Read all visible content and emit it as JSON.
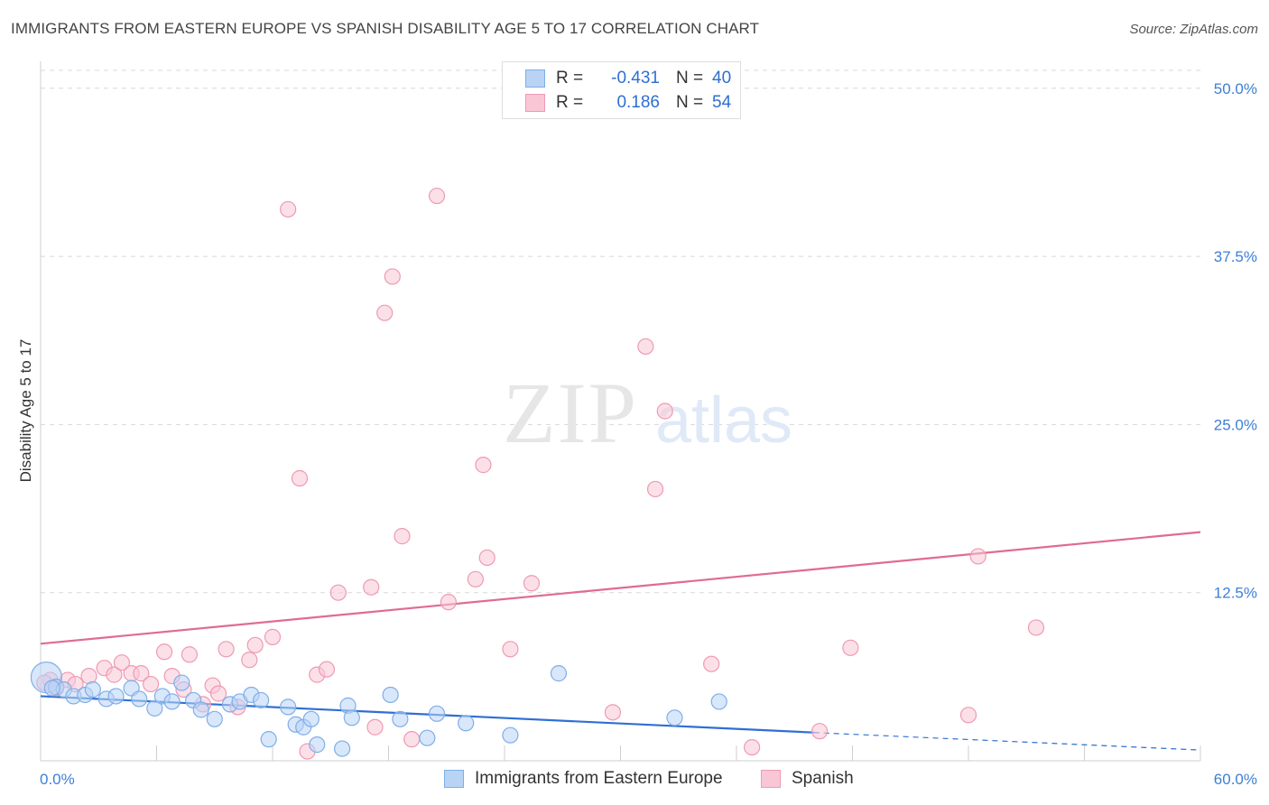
{
  "title": "IMMIGRANTS FROM EASTERN EUROPE VS SPANISH DISABILITY AGE 5 TO 17 CORRELATION CHART",
  "source": "Source: ZipAtlas.com",
  "watermark": {
    "zip": "ZIP",
    "atlas": "atlas"
  },
  "legend": {
    "r_label": "R =",
    "n_label": "N =",
    "series1": {
      "r": "-0.431",
      "n": "40"
    },
    "series2": {
      "r": "0.186",
      "n": "54"
    }
  },
  "colors": {
    "blue_fill": "#b9d3f5",
    "blue_stroke": "#7eaee8",
    "blue_line": "#2f6fd3",
    "pink_fill": "#f9c6d6",
    "pink_stroke": "#ee9ab4",
    "pink_line": "#e06b93",
    "tick": "#3d7fd6",
    "grid": "#d8d8d8"
  },
  "chart_data": {
    "type": "scatter",
    "title": "IMMIGRANTS FROM EASTERN EUROPE VS SPANISH DISABILITY AGE 5 TO 17 CORRELATION CHART",
    "xlabel": "",
    "ylabel": "Disability Age 5 to 17",
    "xlim": [
      0,
      60
    ],
    "ylim": [
      0,
      52
    ],
    "x_tick_labels": [
      "0.0%",
      "60.0%"
    ],
    "y_ticks": [
      12.5,
      25.0,
      37.5,
      50.0
    ],
    "y_tick_labels": [
      "12.5%",
      "25.0%",
      "37.5%",
      "50.0%"
    ],
    "grid": true,
    "legend_position": "top-center",
    "series": [
      {
        "name": "Immigrants from Eastern Europe",
        "color": "#b9d3f5",
        "r": -0.431,
        "n": 40,
        "trend": {
          "x": [
            0,
            40
          ],
          "y": [
            4.8,
            2.1
          ]
        },
        "trend_dashed": {
          "x": [
            40,
            60
          ],
          "y": [
            2.1,
            0.8
          ]
        },
        "points": [
          [
            0.3,
            6.2
          ],
          [
            0.8,
            5.5
          ],
          [
            1.2,
            5.3
          ],
          [
            1.7,
            4.8
          ],
          [
            2.3,
            4.9
          ],
          [
            2.7,
            5.3
          ],
          [
            3.4,
            4.6
          ],
          [
            3.9,
            4.8
          ],
          [
            4.7,
            5.4
          ],
          [
            5.1,
            4.6
          ],
          [
            5.9,
            3.9
          ],
          [
            6.3,
            4.8
          ],
          [
            6.8,
            4.4
          ],
          [
            7.3,
            5.8
          ],
          [
            7.9,
            4.5
          ],
          [
            8.3,
            3.8
          ],
          [
            9.0,
            3.1
          ],
          [
            9.8,
            4.2
          ],
          [
            10.3,
            4.4
          ],
          [
            10.9,
            4.9
          ],
          [
            11.4,
            4.5
          ],
          [
            11.8,
            1.6
          ],
          [
            12.8,
            4.0
          ],
          [
            13.2,
            2.7
          ],
          [
            13.6,
            2.5
          ],
          [
            14.0,
            3.1
          ],
          [
            14.3,
            1.2
          ],
          [
            15.6,
            0.9
          ],
          [
            15.9,
            4.1
          ],
          [
            16.1,
            3.2
          ],
          [
            18.1,
            4.9
          ],
          [
            18.6,
            3.1
          ],
          [
            20.0,
            1.7
          ],
          [
            20.5,
            3.5
          ],
          [
            22.0,
            2.8
          ],
          [
            24.3,
            1.9
          ],
          [
            26.8,
            6.5
          ],
          [
            32.8,
            3.2
          ],
          [
            35.1,
            4.4
          ],
          [
            0.6,
            5.4
          ]
        ]
      },
      {
        "name": "Spanish",
        "color": "#f9c6d6",
        "r": 0.186,
        "n": 54,
        "trend": {
          "x": [
            0,
            60
          ],
          "y": [
            8.7,
            17.0
          ]
        },
        "points": [
          [
            0.5,
            6.0
          ],
          [
            0.8,
            5.4
          ],
          [
            1.4,
            6.0
          ],
          [
            1.8,
            5.7
          ],
          [
            2.5,
            6.3
          ],
          [
            3.3,
            6.9
          ],
          [
            3.8,
            6.4
          ],
          [
            4.2,
            7.3
          ],
          [
            4.7,
            6.5
          ],
          [
            5.2,
            6.5
          ],
          [
            5.7,
            5.7
          ],
          [
            6.4,
            8.1
          ],
          [
            6.8,
            6.3
          ],
          [
            7.4,
            5.3
          ],
          [
            7.7,
            7.9
          ],
          [
            8.4,
            4.2
          ],
          [
            8.9,
            5.6
          ],
          [
            9.2,
            5.0
          ],
          [
            9.6,
            8.3
          ],
          [
            10.2,
            4.0
          ],
          [
            10.8,
            7.5
          ],
          [
            11.1,
            8.6
          ],
          [
            12.0,
            9.2
          ],
          [
            12.8,
            41.0
          ],
          [
            13.4,
            21.0
          ],
          [
            13.8,
            0.7
          ],
          [
            14.3,
            6.4
          ],
          [
            14.8,
            6.8
          ],
          [
            15.4,
            12.5
          ],
          [
            17.1,
            12.9
          ],
          [
            17.3,
            2.5
          ],
          [
            17.8,
            33.3
          ],
          [
            18.2,
            36.0
          ],
          [
            18.7,
            16.7
          ],
          [
            19.2,
            1.6
          ],
          [
            20.5,
            42.0
          ],
          [
            21.1,
            11.8
          ],
          [
            22.5,
            13.5
          ],
          [
            22.9,
            22.0
          ],
          [
            23.1,
            15.1
          ],
          [
            24.3,
            8.3
          ],
          [
            25.4,
            13.2
          ],
          [
            29.6,
            3.6
          ],
          [
            31.3,
            30.8
          ],
          [
            31.8,
            20.2
          ],
          [
            32.3,
            26.0
          ],
          [
            34.7,
            7.2
          ],
          [
            36.8,
            1.0
          ],
          [
            40.3,
            2.2
          ],
          [
            41.9,
            8.4
          ],
          [
            48.0,
            3.4
          ],
          [
            48.5,
            15.2
          ],
          [
            51.5,
            9.9
          ],
          [
            0.2,
            5.8
          ]
        ]
      }
    ]
  }
}
